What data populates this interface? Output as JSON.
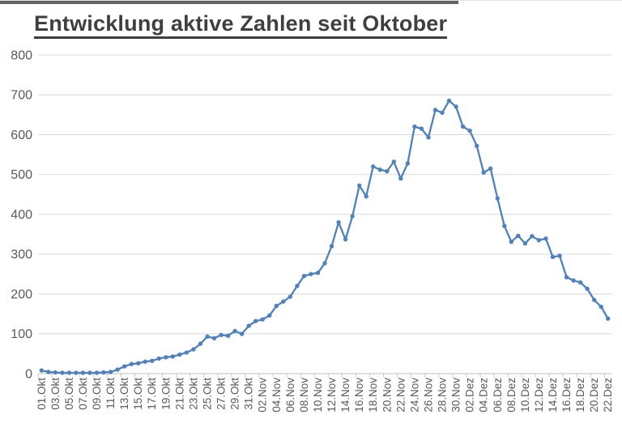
{
  "title": "Entwicklung aktive Zahlen seit Oktober",
  "chart_data": {
    "type": "line",
    "title": "Entwicklung aktive Zahlen seit Oktober",
    "xlabel": "",
    "ylabel": "",
    "ylim": [
      0,
      800
    ],
    "yticks": [
      0,
      100,
      200,
      300,
      400,
      500,
      600,
      700,
      800
    ],
    "grid": true,
    "legend_position": "none",
    "x_label_every": 2,
    "x_label_rotation": -90,
    "series_name": "aktive Zahlen",
    "x": [
      "01.Okt",
      "02.Okt",
      "03.Okt",
      "04.Okt",
      "05.Okt",
      "06.Okt",
      "07.Okt",
      "08.Okt",
      "09.Okt",
      "10.Okt",
      "11.Okt",
      "12.Okt",
      "13.Okt",
      "14.Okt",
      "15.Okt",
      "16.Okt",
      "17.Okt",
      "18.Okt",
      "19.Okt",
      "20.Okt",
      "21.Okt",
      "22.Okt",
      "23.Okt",
      "24.Okt",
      "25.Okt",
      "26.Okt",
      "27.Okt",
      "28.Okt",
      "29.Okt",
      "30.Okt",
      "31.Okt",
      "01.Nov",
      "02.Nov",
      "03.Nov",
      "04.Nov",
      "05.Nov",
      "06.Nov",
      "07.Nov",
      "08.Nov",
      "09.Nov",
      "10.Nov",
      "11.Nov",
      "12.Nov",
      "13.Nov",
      "14.Nov",
      "15.Nov",
      "16.Nov",
      "17.Nov",
      "18.Nov",
      "19.Nov",
      "20.Nov",
      "21.Nov",
      "22.Nov",
      "23.Nov",
      "24.Nov",
      "25.Nov",
      "26.Nov",
      "27.Nov",
      "28.Nov",
      "29.Nov",
      "30.Nov",
      "01.Dez",
      "02.Dez",
      "03.Dez",
      "04.Dez",
      "05.Dez",
      "06.Dez",
      "07.Dez",
      "08.Dez",
      "09.Dez",
      "10.Dez",
      "11.Dez",
      "12.Dez",
      "13.Dez",
      "14.Dez",
      "15.Dez",
      "16.Dez",
      "17.Dez",
      "18.Dez",
      "19.Dez",
      "20.Dez",
      "21.Dez",
      "22.Dez"
    ],
    "values": [
      8,
      4,
      3,
      2,
      2,
      2,
      2,
      2,
      2,
      3,
      4,
      10,
      18,
      24,
      26,
      30,
      32,
      38,
      41,
      43,
      48,
      53,
      61,
      75,
      93,
      89,
      97,
      95,
      107,
      100,
      120,
      132,
      136,
      146,
      170,
      181,
      193,
      220,
      245,
      250,
      253,
      277,
      320,
      380,
      337,
      395,
      472,
      445,
      520,
      512,
      508,
      532,
      490,
      528,
      620,
      615,
      593,
      662,
      655,
      685,
      670,
      620,
      610,
      572,
      505,
      515,
      440,
      371,
      331,
      346,
      327,
      345,
      335,
      339,
      293,
      296,
      242,
      234,
      229,
      213,
      185,
      168,
      138
    ],
    "colors": {
      "series": "#4f81bd",
      "gridline": "#d9d9d9",
      "axis": "#bfbfbf",
      "tick": "#c6c6c6",
      "axis_text": "#595959",
      "title_text": "#3f3f3f"
    }
  }
}
